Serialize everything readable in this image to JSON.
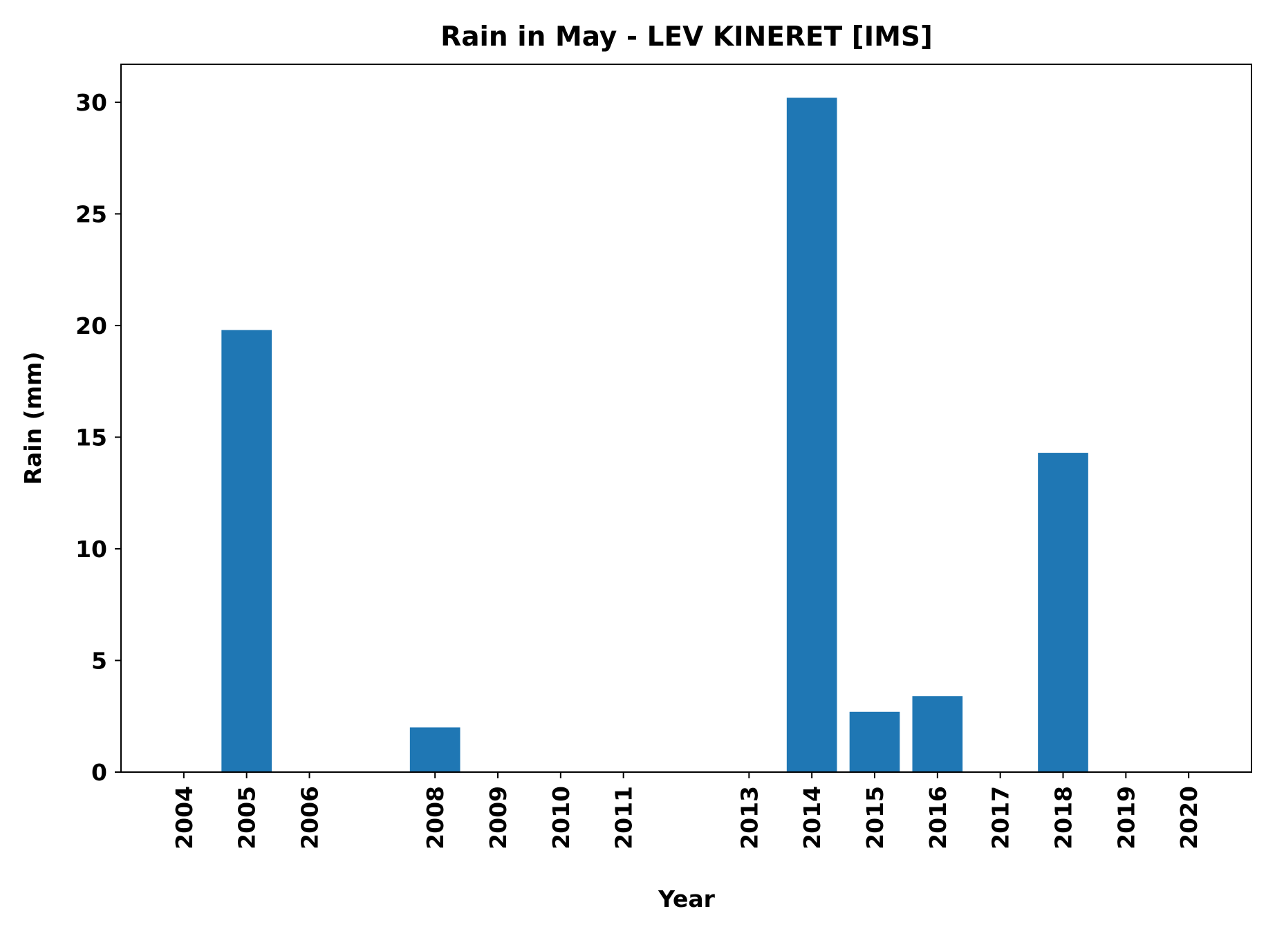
{
  "chart_data": {
    "type": "bar",
    "title": "Rain in May - LEV KINERET [IMS]",
    "xlabel": "Year",
    "ylabel": "Rain (mm)",
    "categories": [
      "2004",
      "2005",
      "2006",
      "2008",
      "2009",
      "2010",
      "2011",
      "2013",
      "2014",
      "2015",
      "2016",
      "2017",
      "2018",
      "2019",
      "2020"
    ],
    "x": [
      2004,
      2005,
      2006,
      2008,
      2009,
      2010,
      2011,
      2013,
      2014,
      2015,
      2016,
      2017,
      2018,
      2019,
      2020
    ],
    "values": [
      0,
      19.8,
      0,
      2.0,
      0,
      0,
      0,
      0,
      30.2,
      2.7,
      3.4,
      0,
      14.3,
      0,
      0
    ],
    "xlim": [
      2003.0,
      2021.0
    ],
    "ylim": [
      0,
      31.7
    ],
    "yticks": [
      0,
      5,
      10,
      15,
      20,
      25,
      30
    ],
    "grid": false,
    "bar_color": "#1f77b4"
  }
}
